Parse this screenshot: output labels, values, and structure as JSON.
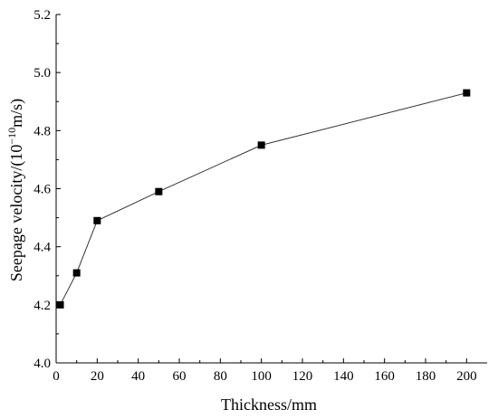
{
  "chart_data": {
    "type": "line",
    "xlabel": "Thickness/mm",
    "ylabel_prefix": "Seepage velocity/(10",
    "ylabel_exp": "−10",
    "ylabel_suffix": "m/s)",
    "xlim": [
      0,
      210
    ],
    "ylim": [
      4.0,
      5.2
    ],
    "xticks": [
      0,
      20,
      40,
      60,
      80,
      100,
      120,
      140,
      160,
      180,
      200
    ],
    "yticks": [
      "4.0",
      "4.2",
      "4.4",
      "4.6",
      "4.8",
      "5.0",
      "5.2"
    ],
    "x": [
      2,
      10,
      20,
      50,
      100,
      200
    ],
    "y": [
      4.2,
      4.31,
      4.49,
      4.59,
      4.75,
      4.93
    ],
    "grid": false,
    "marker": "square",
    "line_color": "#333333",
    "marker_color": "#000000"
  }
}
